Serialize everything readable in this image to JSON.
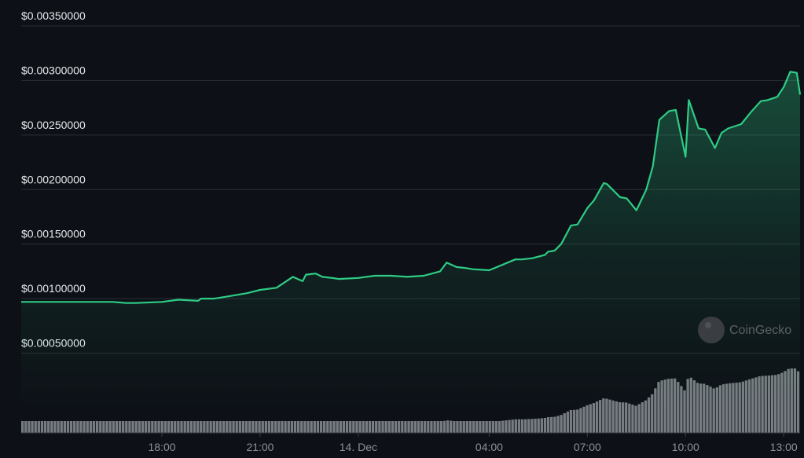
{
  "watermark": "CoinGecko",
  "chart_data": {
    "type": "line",
    "title": "",
    "xlabel": "",
    "ylabel": "",
    "ylim": [
      0,
      0.0035
    ],
    "grid": true,
    "y_ticks": [
      "$0.00350000",
      "$0.00300000",
      "$0.00250000",
      "$0.00200000",
      "$0.00150000",
      "$0.00100000",
      "$0.00050000"
    ],
    "y_tick_values": [
      0.0035,
      0.003,
      0.0025,
      0.002,
      0.0015,
      0.001,
      0.0005
    ],
    "x_ticks": [
      "18:00",
      "21:00",
      "14. Dec",
      "04:00",
      "07:00",
      "10:00",
      "13:00"
    ],
    "x_tick_hours": [
      18,
      21,
      24,
      28,
      31,
      34,
      37
    ],
    "x_range_hours": [
      13.7,
      37.5
    ],
    "colors": {
      "line": "#2ecc85",
      "volume": "#9aa0a6",
      "grid": "#2a2f35"
    },
    "price_series": {
      "x_hours": [
        13.7,
        14.5,
        15.5,
        16.5,
        16.9,
        17.2,
        18.0,
        18.5,
        19.1,
        19.2,
        19.6,
        20.0,
        20.6,
        21.0,
        21.5,
        22.0,
        22.3,
        22.4,
        22.7,
        22.9,
        23.2,
        23.4,
        24.0,
        24.5,
        25.0,
        25.5,
        26.0,
        26.5,
        26.7,
        27.0,
        27.3,
        27.5,
        28.0,
        28.4,
        28.8,
        29.0,
        29.3,
        29.7,
        29.8,
        30.0,
        30.2,
        30.5,
        30.7,
        31.0,
        31.2,
        31.5,
        31.6,
        32.0,
        32.2,
        32.5,
        32.8,
        33.0,
        33.2,
        33.5,
        33.7,
        34.0,
        34.1,
        34.4,
        34.6,
        34.9,
        35.1,
        35.3,
        35.7,
        36.0,
        36.3,
        36.5,
        36.8,
        37.0,
        37.2,
        37.4,
        37.5
      ],
      "y": [
        0.00097,
        0.00097,
        0.00097,
        0.00097,
        0.00096,
        0.00096,
        0.00097,
        0.00099,
        0.00098,
        0.001,
        0.001,
        0.00102,
        0.00105,
        0.00108,
        0.0011,
        0.0012,
        0.00116,
        0.00122,
        0.00123,
        0.0012,
        0.00119,
        0.00118,
        0.00119,
        0.00121,
        0.00121,
        0.0012,
        0.00121,
        0.00125,
        0.00133,
        0.00129,
        0.00128,
        0.00127,
        0.00126,
        0.00131,
        0.00136,
        0.00136,
        0.00137,
        0.0014,
        0.00143,
        0.00144,
        0.0015,
        0.00167,
        0.00168,
        0.00183,
        0.0019,
        0.00206,
        0.00205,
        0.00193,
        0.00192,
        0.00181,
        0.002,
        0.00221,
        0.00264,
        0.00272,
        0.00273,
        0.0023,
        0.00282,
        0.00256,
        0.00255,
        0.00238,
        0.00252,
        0.00256,
        0.0026,
        0.00271,
        0.00281,
        0.00282,
        0.00285,
        0.00294,
        0.00308,
        0.00307,
        0.00287
      ]
    }
  }
}
